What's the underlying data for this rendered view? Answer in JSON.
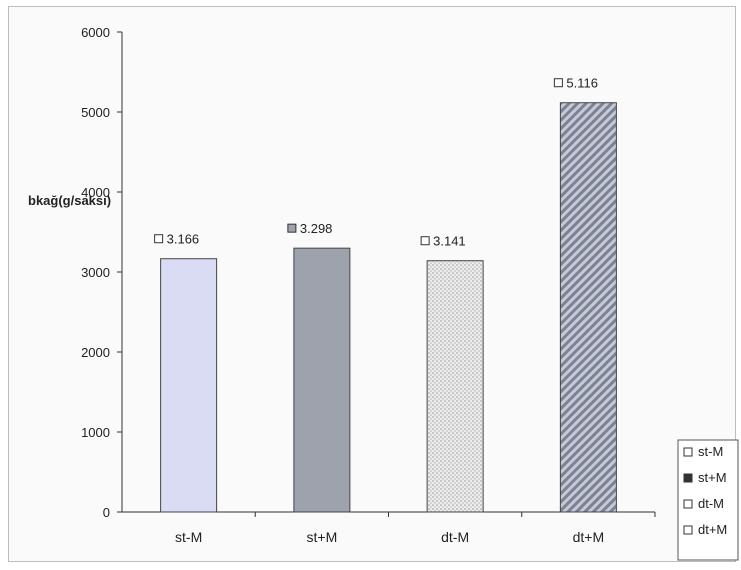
{
  "chart_data": {
    "type": "bar",
    "title": "",
    "xlabel": "",
    "ylabel": "bkağ(g/saksı)",
    "categories": [
      "st-M",
      "st+M",
      "dt-M",
      "dt+M"
    ],
    "values": [
      3166,
      3298,
      3141,
      5116
    ],
    "data_labels": [
      "3.166",
      "3.298",
      "3.141",
      "5.116"
    ],
    "ylim": [
      0,
      6000
    ],
    "yticks": [
      0,
      1000,
      2000,
      3000,
      4000,
      5000,
      6000
    ],
    "ytick_labels": [
      "0",
      "1000",
      "2000",
      "3000",
      "4000",
      "5000",
      "6000"
    ],
    "grid": false,
    "legend": {
      "placement": "bottom-right",
      "entries": [
        "st-M",
        "st+M",
        "dt-M",
        "dt+M"
      ]
    },
    "colors": [
      "#d9dcf2",
      "#9ea2ad",
      "#e6e6e6",
      "#8f95a6"
    ]
  }
}
